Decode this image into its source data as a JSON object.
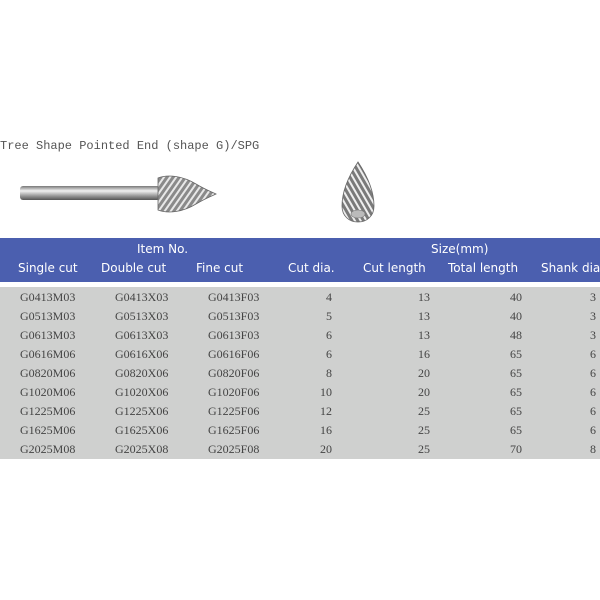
{
  "title": "Tree Shape Pointed End (shape G)/SPG",
  "header": {
    "group_item": "Item No.",
    "group_size": "Size(mm)",
    "columns": [
      "Single cut",
      "Double cut",
      "Fine cut",
      "Cut dia.",
      "Cut length",
      "Total length",
      "Shank dia"
    ]
  },
  "rows": [
    [
      "G0413M03",
      "G0413X03",
      "G0413F03",
      "4",
      "13",
      "40",
      "3"
    ],
    [
      "G0513M03",
      "G0513X03",
      "G0513F03",
      "5",
      "13",
      "40",
      "3"
    ],
    [
      "G0613M03",
      "G0613X03",
      "G0613F03",
      "6",
      "13",
      "48",
      "3"
    ],
    [
      "G0616M06",
      "G0616X06",
      "G0616F06",
      "6",
      "16",
      "65",
      "6"
    ],
    [
      "G0820M06",
      "G0820X06",
      "G0820F06",
      "8",
      "20",
      "65",
      "6"
    ],
    [
      "G1020M06",
      "G1020X06",
      "G1020F06",
      "10",
      "20",
      "65",
      "6"
    ],
    [
      "G1225M06",
      "G1225X06",
      "G1225F06",
      "12",
      "25",
      "65",
      "6"
    ],
    [
      "G1625M06",
      "G1625X06",
      "G1625F06",
      "16",
      "25",
      "65",
      "6"
    ],
    [
      "G2025M08",
      "G2025X08",
      "G2025F08",
      "20",
      "25",
      "70",
      "8"
    ]
  ],
  "colors": {
    "header_bg": "#4b5faf",
    "row_bg": "#cfd0cf"
  }
}
